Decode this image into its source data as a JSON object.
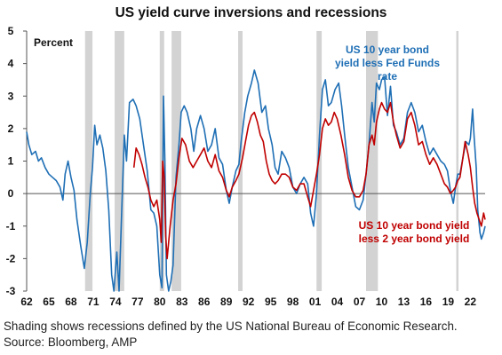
{
  "chart_data": {
    "type": "line",
    "title": "US yield curve inversions and recessions",
    "ylabel": "Percent",
    "xlabel": "",
    "xlim": [
      1962,
      2024
    ],
    "ylim": [
      -3,
      5
    ],
    "y_ticks": [
      -3,
      -2,
      -1,
      0,
      1,
      2,
      3,
      4,
      5
    ],
    "x_tick_labels": [
      "62",
      "65",
      "68",
      "71",
      "74",
      "77",
      "80",
      "83",
      "86",
      "89",
      "92",
      "95",
      "98",
      "01",
      "04",
      "07",
      "10",
      "13",
      "16",
      "19",
      "22"
    ],
    "recessions": [
      [
        1969.9,
        1970.9
      ],
      [
        1973.9,
        1975.2
      ],
      [
        1980.0,
        1980.6
      ],
      [
        1981.6,
        1982.9
      ],
      [
        1990.6,
        1991.2
      ],
      [
        2001.2,
        2001.9
      ],
      [
        2007.9,
        2009.5
      ],
      [
        2020.1,
        2020.4
      ]
    ],
    "grid": false,
    "legend": "direct labels",
    "series": [
      {
        "name": "US 10 year bond yield less Fed Funds rate",
        "label_lines": [
          "US 10 year bond",
          "yield less Fed Funds",
          "rate"
        ],
        "color": "#1f6fb5",
        "points": [
          [
            1962.0,
            1.9
          ],
          [
            1962.3,
            1.5
          ],
          [
            1962.7,
            1.2
          ],
          [
            1963.2,
            1.3
          ],
          [
            1963.6,
            1.0
          ],
          [
            1964.0,
            1.1
          ],
          [
            1964.5,
            0.8
          ],
          [
            1965.0,
            0.6
          ],
          [
            1965.5,
            0.5
          ],
          [
            1966.0,
            0.4
          ],
          [
            1966.5,
            0.2
          ],
          [
            1966.9,
            -0.2
          ],
          [
            1967.2,
            0.6
          ],
          [
            1967.6,
            1.0
          ],
          [
            1968.0,
            0.5
          ],
          [
            1968.4,
            0.1
          ],
          [
            1968.8,
            -0.8
          ],
          [
            1969.3,
            -1.6
          ],
          [
            1969.8,
            -2.3
          ],
          [
            1970.2,
            -1.5
          ],
          [
            1970.6,
            0.0
          ],
          [
            1970.9,
            0.8
          ],
          [
            1971.2,
            2.1
          ],
          [
            1971.5,
            1.5
          ],
          [
            1971.9,
            1.8
          ],
          [
            1972.3,
            1.4
          ],
          [
            1972.7,
            0.7
          ],
          [
            1973.1,
            -0.5
          ],
          [
            1973.5,
            -2.5
          ],
          [
            1973.8,
            -3.0
          ],
          [
            1974.2,
            -1.8
          ],
          [
            1974.5,
            -3.0
          ],
          [
            1974.9,
            -0.2
          ],
          [
            1975.2,
            1.8
          ],
          [
            1975.5,
            1.0
          ],
          [
            1975.9,
            2.8
          ],
          [
            1976.4,
            2.9
          ],
          [
            1976.8,
            2.7
          ],
          [
            1977.3,
            2.3
          ],
          [
            1977.8,
            1.5
          ],
          [
            1978.3,
            0.7
          ],
          [
            1978.8,
            -0.5
          ],
          [
            1979.2,
            -0.6
          ],
          [
            1979.6,
            -1.0
          ],
          [
            1980.0,
            -2.5
          ],
          [
            1980.3,
            -2.9
          ],
          [
            1980.5,
            3.0
          ],
          [
            1980.7,
            1.0
          ],
          [
            1980.9,
            -2.5
          ],
          [
            1981.2,
            -3.0
          ],
          [
            1981.5,
            -2.7
          ],
          [
            1981.8,
            -2.2
          ],
          [
            1982.2,
            0.5
          ],
          [
            1982.6,
            1.5
          ],
          [
            1982.9,
            2.5
          ],
          [
            1983.3,
            2.7
          ],
          [
            1983.7,
            2.5
          ],
          [
            1984.2,
            2.0
          ],
          [
            1984.6,
            1.3
          ],
          [
            1985.0,
            2.0
          ],
          [
            1985.5,
            2.4
          ],
          [
            1986.0,
            2.0
          ],
          [
            1986.5,
            1.3
          ],
          [
            1987.0,
            1.5
          ],
          [
            1987.5,
            2.0
          ],
          [
            1988.0,
            1.1
          ],
          [
            1988.5,
            0.9
          ],
          [
            1989.0,
            0.1
          ],
          [
            1989.4,
            -0.3
          ],
          [
            1989.8,
            0.2
          ],
          [
            1990.3,
            0.7
          ],
          [
            1990.7,
            0.9
          ],
          [
            1991.0,
            1.6
          ],
          [
            1991.5,
            2.5
          ],
          [
            1991.9,
            3.0
          ],
          [
            1992.4,
            3.4
          ],
          [
            1992.8,
            3.8
          ],
          [
            1993.3,
            3.4
          ],
          [
            1993.8,
            2.5
          ],
          [
            1994.3,
            2.7
          ],
          [
            1994.7,
            2.0
          ],
          [
            1995.2,
            1.5
          ],
          [
            1995.6,
            0.8
          ],
          [
            1996.0,
            0.6
          ],
          [
            1996.5,
            1.3
          ],
          [
            1997.0,
            1.1
          ],
          [
            1997.5,
            0.8
          ],
          [
            1998.0,
            0.2
          ],
          [
            1998.5,
            0.0
          ],
          [
            1999.0,
            0.3
          ],
          [
            1999.5,
            0.5
          ],
          [
            2000.0,
            0.3
          ],
          [
            2000.4,
            -0.6
          ],
          [
            2000.8,
            -1.0
          ],
          [
            2001.2,
            0.0
          ],
          [
            2001.6,
            1.8
          ],
          [
            2002.0,
            3.2
          ],
          [
            2002.4,
            3.5
          ],
          [
            2002.8,
            2.7
          ],
          [
            2003.2,
            2.8
          ],
          [
            2003.7,
            3.2
          ],
          [
            2004.2,
            3.4
          ],
          [
            2004.6,
            2.7
          ],
          [
            2005.0,
            1.8
          ],
          [
            2005.5,
            0.8
          ],
          [
            2006.0,
            0.2
          ],
          [
            2006.5,
            -0.4
          ],
          [
            2007.0,
            -0.5
          ],
          [
            2007.5,
            -0.2
          ],
          [
            2007.9,
            0.6
          ],
          [
            2008.3,
            1.5
          ],
          [
            2008.7,
            2.8
          ],
          [
            2009.0,
            2.2
          ],
          [
            2009.3,
            3.4
          ],
          [
            2009.7,
            3.2
          ],
          [
            2010.0,
            3.5
          ],
          [
            2010.4,
            3.6
          ],
          [
            2010.8,
            2.4
          ],
          [
            2011.2,
            3.3
          ],
          [
            2011.6,
            2.1
          ],
          [
            2012.0,
            1.9
          ],
          [
            2012.5,
            1.5
          ],
          [
            2013.0,
            1.7
          ],
          [
            2013.5,
            2.5
          ],
          [
            2014.0,
            2.8
          ],
          [
            2014.5,
            2.5
          ],
          [
            2015.0,
            1.9
          ],
          [
            2015.5,
            2.1
          ],
          [
            2016.0,
            1.6
          ],
          [
            2016.5,
            1.2
          ],
          [
            2017.0,
            1.4
          ],
          [
            2017.5,
            1.2
          ],
          [
            2018.0,
            1.0
          ],
          [
            2018.5,
            0.9
          ],
          [
            2018.9,
            0.7
          ],
          [
            2019.3,
            0.1
          ],
          [
            2019.7,
            -0.3
          ],
          [
            2020.0,
            0.2
          ],
          [
            2020.3,
            0.6
          ],
          [
            2020.6,
            0.6
          ],
          [
            2021.0,
            1.1
          ],
          [
            2021.4,
            1.6
          ],
          [
            2021.8,
            1.5
          ],
          [
            2022.0,
            1.7
          ],
          [
            2022.3,
            2.6
          ],
          [
            2022.5,
            1.8
          ],
          [
            2022.8,
            0.8
          ],
          [
            2023.0,
            -0.5
          ],
          [
            2023.3,
            -1.2
          ],
          [
            2023.5,
            -1.4
          ],
          [
            2023.8,
            -1.2
          ],
          [
            2024.0,
            -1.0
          ]
        ]
      },
      {
        "name": "US 10 year bond yield less 2 year bond yield",
        "label_lines": [
          "US 10 year bond yield",
          "less 2 year bond yield"
        ],
        "color": "#c00000",
        "points": [
          [
            1976.5,
            0.8
          ],
          [
            1976.8,
            1.4
          ],
          [
            1977.2,
            1.2
          ],
          [
            1977.6,
            0.9
          ],
          [
            1978.0,
            0.5
          ],
          [
            1978.4,
            0.2
          ],
          [
            1978.8,
            -0.2
          ],
          [
            1979.2,
            -0.4
          ],
          [
            1979.6,
            -0.2
          ],
          [
            1980.0,
            -0.8
          ],
          [
            1980.2,
            -1.5
          ],
          [
            1980.4,
            1.0
          ],
          [
            1980.6,
            0.5
          ],
          [
            1980.8,
            -1.3
          ],
          [
            1981.0,
            -2.0
          ],
          [
            1981.4,
            -1.0
          ],
          [
            1981.8,
            -0.2
          ],
          [
            1982.2,
            0.3
          ],
          [
            1982.6,
            1.1
          ],
          [
            1983.0,
            1.7
          ],
          [
            1983.5,
            1.5
          ],
          [
            1984.0,
            1.0
          ],
          [
            1984.5,
            0.8
          ],
          [
            1985.0,
            1.0
          ],
          [
            1985.5,
            1.2
          ],
          [
            1986.0,
            1.4
          ],
          [
            1986.5,
            1.0
          ],
          [
            1987.0,
            0.8
          ],
          [
            1987.5,
            1.2
          ],
          [
            1988.0,
            0.7
          ],
          [
            1988.5,
            0.5
          ],
          [
            1989.0,
            0.1
          ],
          [
            1989.4,
            -0.1
          ],
          [
            1989.8,
            0.2
          ],
          [
            1990.3,
            0.4
          ],
          [
            1990.7,
            0.6
          ],
          [
            1991.2,
            1.1
          ],
          [
            1991.6,
            1.6
          ],
          [
            1992.0,
            2.1
          ],
          [
            1992.4,
            2.4
          ],
          [
            1992.8,
            2.5
          ],
          [
            1993.2,
            2.2
          ],
          [
            1993.6,
            1.8
          ],
          [
            1994.0,
            1.6
          ],
          [
            1994.4,
            1.0
          ],
          [
            1994.8,
            0.6
          ],
          [
            1995.2,
            0.4
          ],
          [
            1995.6,
            0.3
          ],
          [
            1996.0,
            0.4
          ],
          [
            1996.5,
            0.6
          ],
          [
            1997.0,
            0.6
          ],
          [
            1997.5,
            0.5
          ],
          [
            1998.0,
            0.2
          ],
          [
            1998.5,
            0.1
          ],
          [
            1999.0,
            0.3
          ],
          [
            1999.5,
            0.3
          ],
          [
            2000.0,
            -0.1
          ],
          [
            2000.4,
            -0.4
          ],
          [
            2000.8,
            0.1
          ],
          [
            2001.2,
            0.6
          ],
          [
            2001.6,
            1.2
          ],
          [
            2002.0,
            2.0
          ],
          [
            2002.4,
            2.3
          ],
          [
            2002.8,
            2.1
          ],
          [
            2003.2,
            2.2
          ],
          [
            2003.6,
            2.5
          ],
          [
            2004.0,
            2.3
          ],
          [
            2004.5,
            1.8
          ],
          [
            2005.0,
            1.2
          ],
          [
            2005.5,
            0.5
          ],
          [
            2006.0,
            0.1
          ],
          [
            2006.5,
            -0.1
          ],
          [
            2007.0,
            -0.1
          ],
          [
            2007.5,
            0.1
          ],
          [
            2007.9,
            0.6
          ],
          [
            2008.3,
            1.5
          ],
          [
            2008.7,
            1.8
          ],
          [
            2009.0,
            1.5
          ],
          [
            2009.3,
            2.2
          ],
          [
            2009.7,
            2.6
          ],
          [
            2010.0,
            2.8
          ],
          [
            2010.4,
            2.6
          ],
          [
            2010.8,
            2.5
          ],
          [
            2011.2,
            2.8
          ],
          [
            2011.6,
            2.2
          ],
          [
            2012.0,
            1.8
          ],
          [
            2012.5,
            1.4
          ],
          [
            2013.0,
            1.6
          ],
          [
            2013.5,
            2.3
          ],
          [
            2014.0,
            2.5
          ],
          [
            2014.5,
            2.1
          ],
          [
            2015.0,
            1.5
          ],
          [
            2015.5,
            1.6
          ],
          [
            2016.0,
            1.2
          ],
          [
            2016.5,
            0.9
          ],
          [
            2017.0,
            1.1
          ],
          [
            2017.5,
            0.9
          ],
          [
            2018.0,
            0.6
          ],
          [
            2018.5,
            0.3
          ],
          [
            2018.9,
            0.2
          ],
          [
            2019.3,
            0.0
          ],
          [
            2019.7,
            0.1
          ],
          [
            2020.0,
            0.2
          ],
          [
            2020.3,
            0.4
          ],
          [
            2020.6,
            0.5
          ],
          [
            2021.0,
            1.1
          ],
          [
            2021.3,
            1.6
          ],
          [
            2021.7,
            1.2
          ],
          [
            2022.0,
            0.8
          ],
          [
            2022.3,
            0.2
          ],
          [
            2022.6,
            -0.3
          ],
          [
            2022.9,
            -0.6
          ],
          [
            2023.2,
            -0.8
          ],
          [
            2023.5,
            -1.0
          ],
          [
            2023.8,
            -0.6
          ],
          [
            2024.0,
            -0.8
          ]
        ]
      }
    ]
  },
  "note": "Shading shows recessions defined by the US National Bureau of Economic Research. Source: Bloomberg, AMP"
}
